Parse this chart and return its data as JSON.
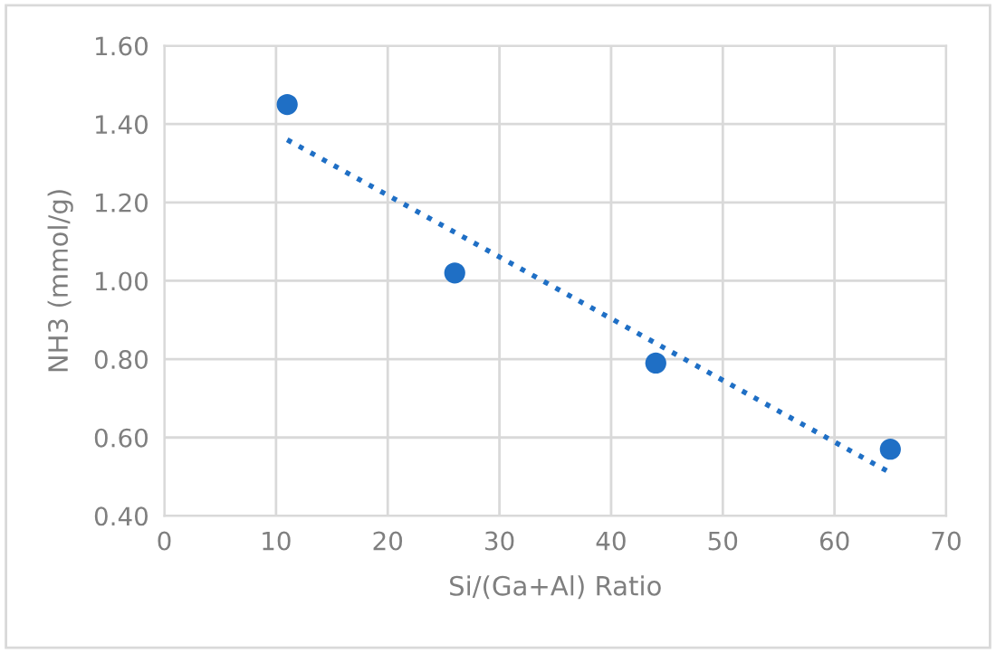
{
  "chart_data": {
    "type": "scatter",
    "xlabel": "Si/(Ga+Al) Ratio",
    "ylabel": "NH3 (mmol/g)",
    "series": [
      {
        "color": "#1f6fc5",
        "marker": "circle",
        "x": [
          11,
          26,
          44,
          65
        ],
        "values": [
          1.45,
          1.02,
          0.79,
          0.57
        ]
      },
      {
        "type": "line",
        "color": "#1f6fc5",
        "line_style": "dotted",
        "x": [
          11,
          65
        ],
        "values": [
          1.36,
          0.51
        ]
      }
    ],
    "xlim": [
      0,
      70
    ],
    "xticks": [
      0,
      10,
      20,
      30,
      40,
      50,
      60,
      70
    ],
    "ylim": [
      0.4,
      1.6
    ],
    "yticks": [
      {
        "value": 0.4,
        "label": "0.40"
      },
      {
        "value": 0.6,
        "label": "0.60"
      },
      {
        "value": 0.8,
        "label": "0.80"
      },
      {
        "value": 1.0,
        "label": "1.00"
      },
      {
        "value": 1.2,
        "label": "1.20"
      },
      {
        "value": 1.4,
        "label": "1.40"
      },
      {
        "value": 1.6,
        "label": "1.60"
      }
    ],
    "grid": true,
    "legend": false
  }
}
